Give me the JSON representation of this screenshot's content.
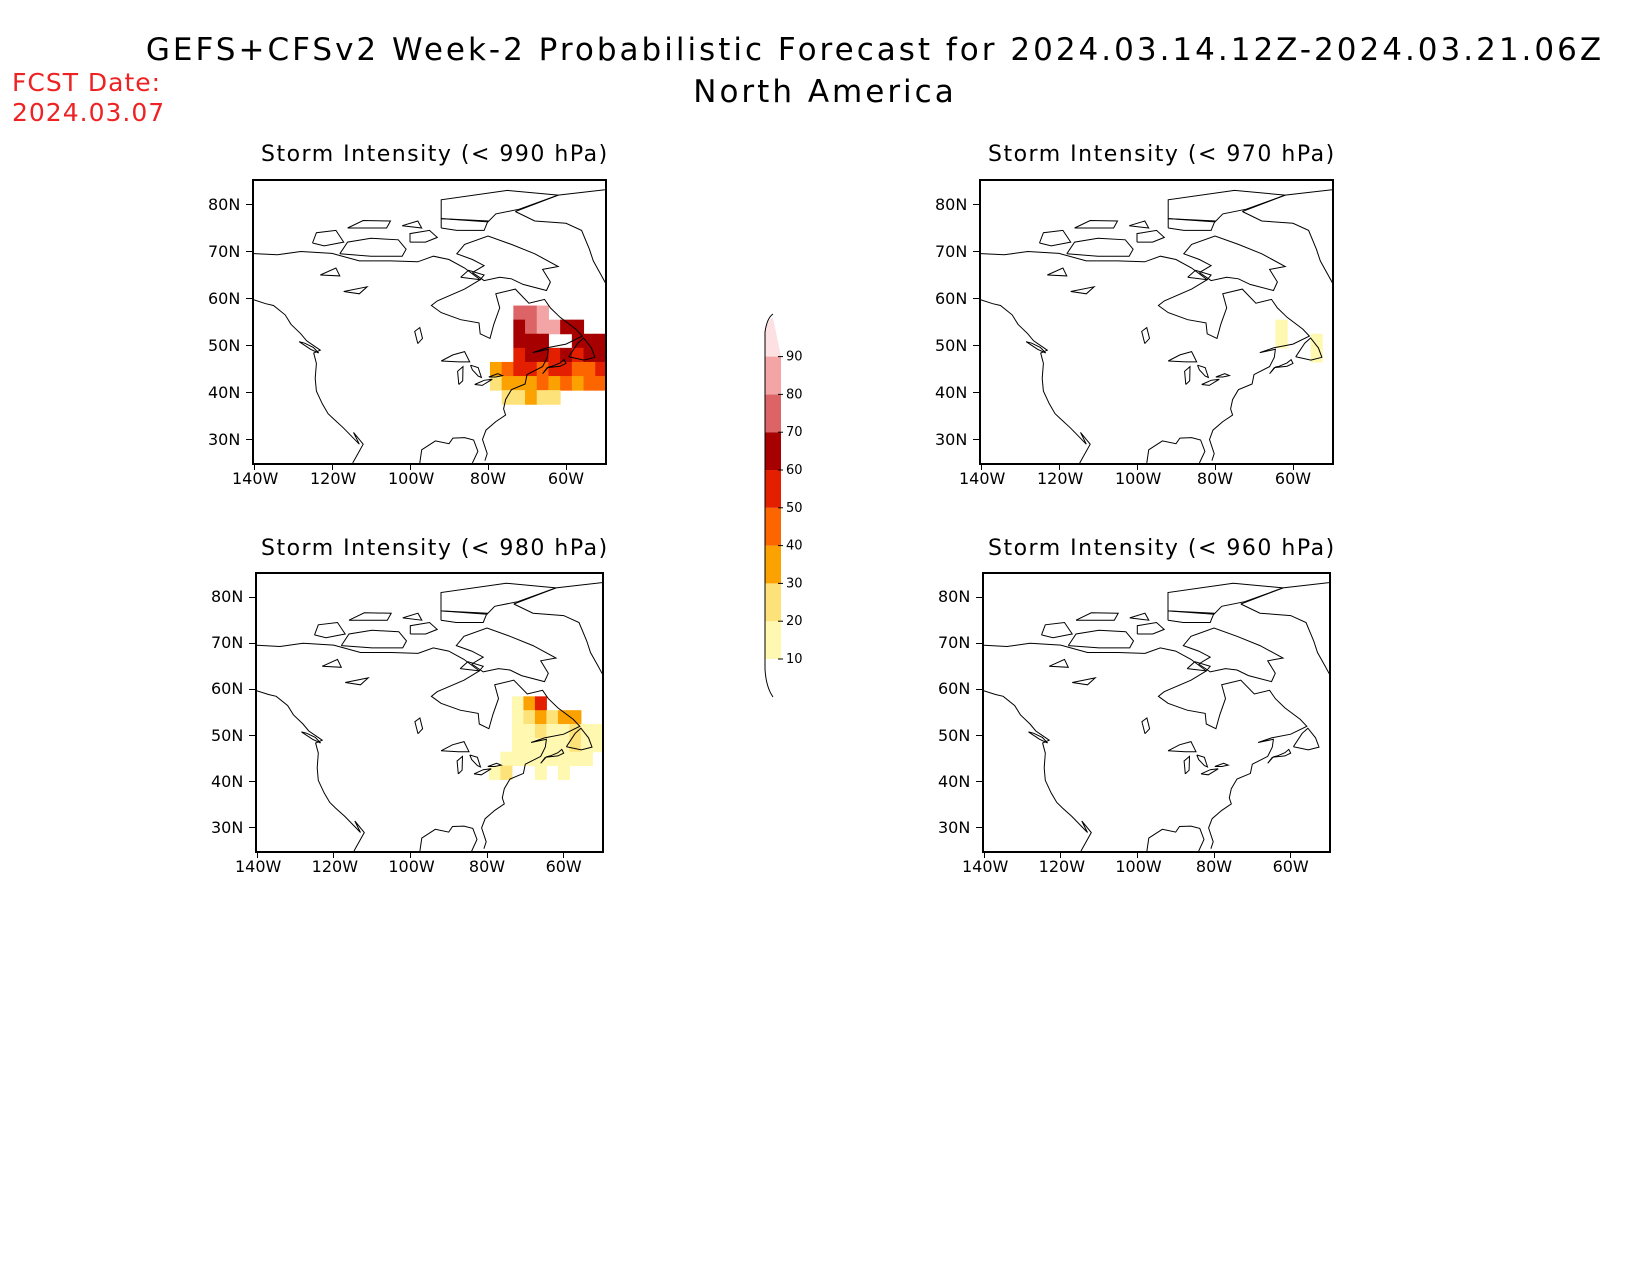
{
  "header": {
    "title": "GEFS+CFSv2 Week-2 Probabilistic Forecast for 2024.03.14.12Z-2024.03.21.06Z",
    "subtitle": "North America",
    "fcst_label": "FCST Date:",
    "fcst_date": "2024.03.07"
  },
  "colorbar": {
    "levels": [
      "10",
      "20",
      "30",
      "40",
      "50",
      "60",
      "70",
      "80",
      "90"
    ],
    "colors": [
      "#fff8b0",
      "#fde27a",
      "#fba200",
      "#fd6500",
      "#e41f00",
      "#a60000",
      "#dc6466",
      "#f3a5a6",
      "#fde0e2"
    ]
  },
  "axes": {
    "lat_labels": [
      "80N",
      "70N",
      "60N",
      "50N",
      "40N",
      "30N"
    ],
    "lat_values": [
      80,
      70,
      60,
      50,
      40,
      30
    ],
    "lon_labels": [
      "140W",
      "120W",
      "100W",
      "80W",
      "60W"
    ],
    "lon_values": [
      -140,
      -120,
      -100,
      -80,
      -60
    ],
    "lat_range": [
      25,
      85
    ],
    "lon_range": [
      -140,
      -50
    ]
  },
  "panels": [
    {
      "title": "Storm Intensity (< 990 hPa)",
      "threshold_hPa": 990,
      "probability_cells": [
        {
          "lat": 57,
          "lon": -72,
          "p": 70
        },
        {
          "lat": 57,
          "lon": -69,
          "p": 70
        },
        {
          "lat": 57,
          "lon": -66,
          "p": 80
        },
        {
          "lat": 54,
          "lon": -72,
          "p": 60
        },
        {
          "lat": 54,
          "lon": -69,
          "p": 70
        },
        {
          "lat": 54,
          "lon": -66,
          "p": 80
        },
        {
          "lat": 54,
          "lon": -63,
          "p": 80
        },
        {
          "lat": 54,
          "lon": -60,
          "p": 60
        },
        {
          "lat": 54,
          "lon": -57,
          "p": 60
        },
        {
          "lat": 51,
          "lon": -72,
          "p": 60
        },
        {
          "lat": 51,
          "lon": -69,
          "p": 60
        },
        {
          "lat": 51,
          "lon": -66,
          "p": 60
        },
        {
          "lat": 51,
          "lon": -57,
          "p": 60
        },
        {
          "lat": 51,
          "lon": -54,
          "p": 60
        },
        {
          "lat": 51,
          "lon": -51,
          "p": 60
        },
        {
          "lat": 48,
          "lon": -72,
          "p": 50
        },
        {
          "lat": 48,
          "lon": -69,
          "p": 60
        },
        {
          "lat": 48,
          "lon": -66,
          "p": 60
        },
        {
          "lat": 48,
          "lon": -63,
          "p": 50
        },
        {
          "lat": 48,
          "lon": -60,
          "p": 60
        },
        {
          "lat": 48,
          "lon": -57,
          "p": 50
        },
        {
          "lat": 48,
          "lon": -54,
          "p": 60
        },
        {
          "lat": 48,
          "lon": -51,
          "p": 60
        },
        {
          "lat": 45,
          "lon": -78,
          "p": 30
        },
        {
          "lat": 45,
          "lon": -75,
          "p": 40
        },
        {
          "lat": 45,
          "lon": -72,
          "p": 50
        },
        {
          "lat": 45,
          "lon": -69,
          "p": 50
        },
        {
          "lat": 45,
          "lon": -66,
          "p": 40
        },
        {
          "lat": 45,
          "lon": -63,
          "p": 50
        },
        {
          "lat": 45,
          "lon": -60,
          "p": 50
        },
        {
          "lat": 45,
          "lon": -57,
          "p": 40
        },
        {
          "lat": 45,
          "lon": -54,
          "p": 40
        },
        {
          "lat": 45,
          "lon": -51,
          "p": 50
        },
        {
          "lat": 42,
          "lon": -78,
          "p": 20
        },
        {
          "lat": 42,
          "lon": -75,
          "p": 30
        },
        {
          "lat": 42,
          "lon": -72,
          "p": 30
        },
        {
          "lat": 42,
          "lon": -69,
          "p": 30
        },
        {
          "lat": 42,
          "lon": -66,
          "p": 40
        },
        {
          "lat": 42,
          "lon": -63,
          "p": 30
        },
        {
          "lat": 42,
          "lon": -60,
          "p": 40
        },
        {
          "lat": 42,
          "lon": -57,
          "p": 30
        },
        {
          "lat": 42,
          "lon": -54,
          "p": 40
        },
        {
          "lat": 42,
          "lon": -51,
          "p": 40
        },
        {
          "lat": 39,
          "lon": -75,
          "p": 20
        },
        {
          "lat": 39,
          "lon": -72,
          "p": 20
        },
        {
          "lat": 39,
          "lon": -69,
          "p": 30
        },
        {
          "lat": 39,
          "lon": -66,
          "p": 20
        },
        {
          "lat": 39,
          "lon": -63,
          "p": 20
        }
      ]
    },
    {
      "title": "Storm Intensity (< 970 hPa)",
      "threshold_hPa": 970,
      "probability_cells": [
        {
          "lat": 54,
          "lon": -63,
          "p": 10
        },
        {
          "lat": 51,
          "lon": -63,
          "p": 10
        },
        {
          "lat": 51,
          "lon": -54,
          "p": 10
        },
        {
          "lat": 48,
          "lon": -54,
          "p": 10
        }
      ]
    },
    {
      "title": "Storm Intensity (< 980 hPa)",
      "threshold_hPa": 980,
      "probability_cells": [
        {
          "lat": 57,
          "lon": -72,
          "p": 10
        },
        {
          "lat": 57,
          "lon": -69,
          "p": 30
        },
        {
          "lat": 57,
          "lon": -66,
          "p": 50
        },
        {
          "lat": 54,
          "lon": -72,
          "p": 10
        },
        {
          "lat": 54,
          "lon": -69,
          "p": 20
        },
        {
          "lat": 54,
          "lon": -66,
          "p": 30
        },
        {
          "lat": 54,
          "lon": -63,
          "p": 20
        },
        {
          "lat": 54,
          "lon": -60,
          "p": 30
        },
        {
          "lat": 54,
          "lon": -57,
          "p": 30
        },
        {
          "lat": 51,
          "lon": -72,
          "p": 10
        },
        {
          "lat": 51,
          "lon": -69,
          "p": 10
        },
        {
          "lat": 51,
          "lon": -66,
          "p": 20
        },
        {
          "lat": 51,
          "lon": -63,
          "p": 10
        },
        {
          "lat": 51,
          "lon": -60,
          "p": 10
        },
        {
          "lat": 51,
          "lon": -57,
          "p": 20
        },
        {
          "lat": 51,
          "lon": -54,
          "p": 10
        },
        {
          "lat": 51,
          "lon": -51,
          "p": 10
        },
        {
          "lat": 48,
          "lon": -72,
          "p": 10
        },
        {
          "lat": 48,
          "lon": -69,
          "p": 10
        },
        {
          "lat": 48,
          "lon": -66,
          "p": 10
        },
        {
          "lat": 48,
          "lon": -63,
          "p": 10
        },
        {
          "lat": 48,
          "lon": -60,
          "p": 10
        },
        {
          "lat": 48,
          "lon": -57,
          "p": 20
        },
        {
          "lat": 48,
          "lon": -54,
          "p": 10
        },
        {
          "lat": 48,
          "lon": -51,
          "p": 10
        },
        {
          "lat": 45,
          "lon": -75,
          "p": 10
        },
        {
          "lat": 45,
          "lon": -72,
          "p": 10
        },
        {
          "lat": 45,
          "lon": -69,
          "p": 10
        },
        {
          "lat": 45,
          "lon": -66,
          "p": 10
        },
        {
          "lat": 45,
          "lon": -63,
          "p": 10
        },
        {
          "lat": 45,
          "lon": -60,
          "p": 10
        },
        {
          "lat": 45,
          "lon": -57,
          "p": 10
        },
        {
          "lat": 45,
          "lon": -54,
          "p": 10
        },
        {
          "lat": 42,
          "lon": -78,
          "p": 10
        },
        {
          "lat": 42,
          "lon": -75,
          "p": 20
        },
        {
          "lat": 42,
          "lon": -66,
          "p": 10
        },
        {
          "lat": 42,
          "lon": -60,
          "p": 10
        }
      ]
    },
    {
      "title": "Storm Intensity (< 960 hPa)",
      "threshold_hPa": 960,
      "probability_cells": []
    }
  ]
}
